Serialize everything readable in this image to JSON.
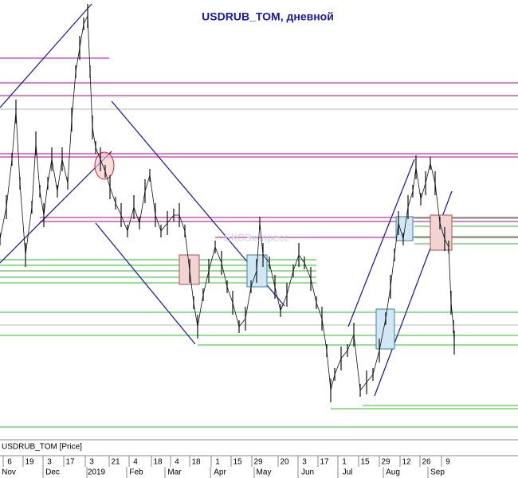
{
  "chart_title": "USDRUB_TOM, дневной",
  "watermark": "БКСЭкспресс",
  "series_label": "USDRUB_TOM [Price]",
  "x_axis": {
    "day_labels": [
      "6",
      "19",
      "3",
      "17",
      "3",
      "21",
      "4",
      "18",
      "4",
      "18",
      "1",
      "15",
      "29",
      "20",
      "3",
      "17",
      "1",
      "15",
      "29",
      "12",
      "26",
      "9"
    ],
    "month_labels": [
      "Nov",
      "Dec",
      "2019",
      "Feb",
      "Mar",
      "Apr",
      "May",
      "Jun",
      "Jul",
      "Aug",
      "Sep"
    ]
  }
}
